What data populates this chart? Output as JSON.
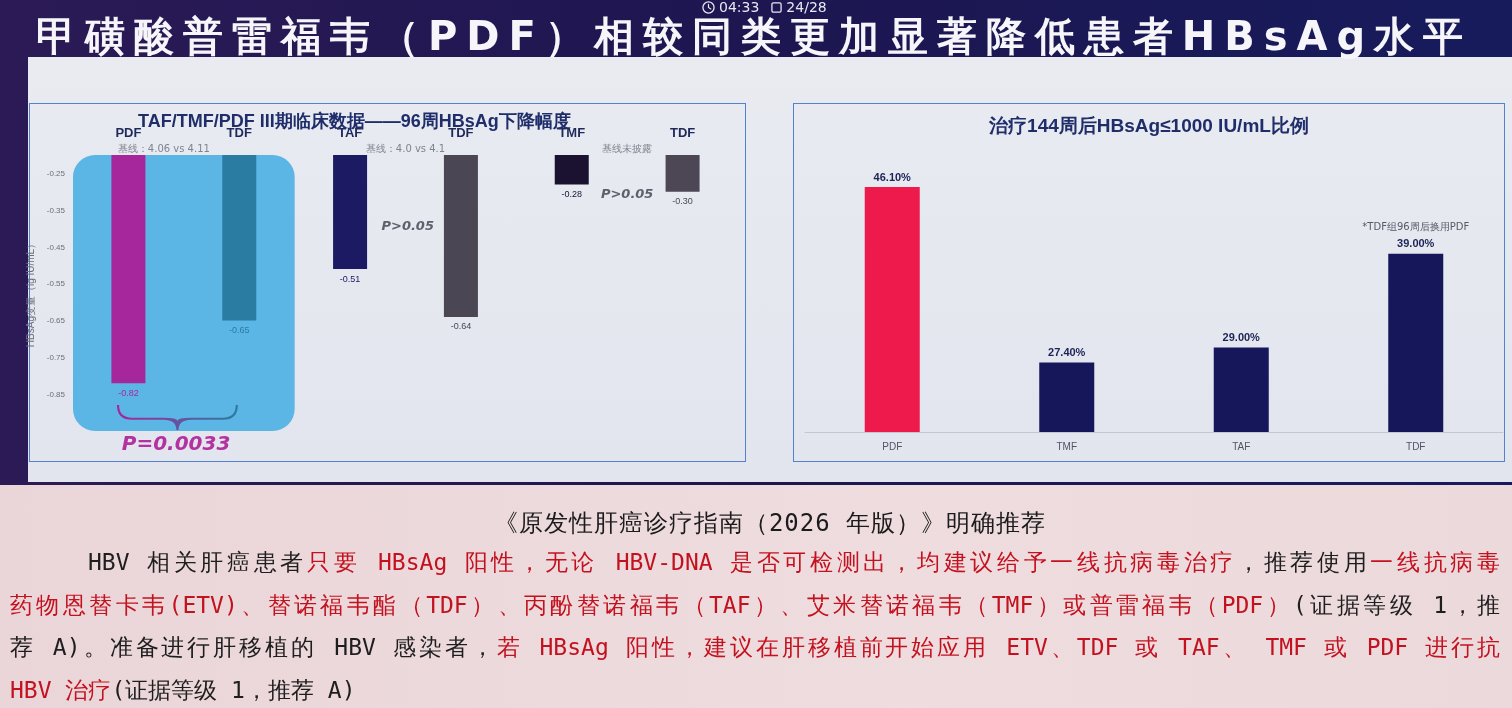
{
  "chart_data": [
    {
      "type": "other",
      "title": "甲磺酸普雷福韦（PDF）相较同类更加显著降低患者HBsAg水平",
      "annotations": [
        "04:33",
        "24/28"
      ]
    },
    {
      "type": "bar",
      "title": "TAF/TMF/PDF III期临床数据——96周HBsAg下降幅度",
      "ylabel": "HBsAg变量（lg IU/mL）",
      "categories": [
        "PDF",
        "TDF",
        "TAF",
        "TDF",
        "TMF",
        "TDF"
      ],
      "values": [
        -0.82,
        -0.65,
        -0.51,
        -0.64,
        -0.28,
        -0.3
      ],
      "colors": [
        "#a6279b",
        "#2b7ca3",
        "#1c1a63",
        "#4b4653",
        "#1b1232",
        "#4d4755"
      ],
      "value_labels": [
        "-0.82",
        "-0.65",
        "-0.51",
        "-0.64",
        "-0.28",
        "-0.30"
      ],
      "ylim": [
        -0.95,
        -0.2
      ],
      "yticks": [
        -0.25,
        -0.35,
        -0.45,
        -0.55,
        -0.65,
        -0.75,
        -0.85
      ],
      "bands": [
        {
          "axis": "x",
          "from": "PDF",
          "to": "TDF",
          "color": "#5bb5e5"
        }
      ],
      "annotations": [
        "基线：4.06 vs 4.11",
        "基线：4.0 vs 4.1",
        "基线未披露",
        "P>0.05",
        "P>0.05",
        "P=0.0033"
      ]
    },
    {
      "type": "bar",
      "title": "治疗144周后HBsAg≤1000 IU/mL比例",
      "categories": [
        "PDF",
        "TMF",
        "TAF",
        "TDF"
      ],
      "values": [
        46.1,
        27.4,
        29.0,
        39.0
      ],
      "colors": [
        "#ee1a4c",
        "#16165a",
        "#16165a",
        "#16165a"
      ],
      "value_labels": [
        "46.10%",
        "27.40%",
        "29.00%",
        "39.00%"
      ],
      "ylim": [
        20,
        46.1
      ],
      "tick_labels": "x",
      "annotations": [
        "*TDF组96周后换用PDF"
      ]
    },
    {
      "type": "other",
      "title": "《原发性肝癌诊疗指南（2026 年版）》明确推荐",
      "annotations": [
        "HBV 相关肝癌患者",
        "只要 HBsAg 阳性，无论 HBV-DNA 是否可检测出，均建议给予一线抗病毒治疗",
        "，推荐使用",
        "一线抗病毒",
        "药物恩替卡韦(ETV)、替诺福韦酯（TDF）、丙酚替诺福韦（TAF）、艾米替诺福韦（TMF）或普雷福韦（PDF）",
        "(证据等级 1，推",
        "荐 A)。准备进行肝移植的 HBV 感染者，",
        "若 HBsAg 阳性，建议在肝移植前开始应用 ETV、TDF 或 TAF、 TMF 或 PDF 进行抗",
        "HBV 治疗",
        "(证据等级 1，推荐 A)"
      ]
    }
  ]
}
